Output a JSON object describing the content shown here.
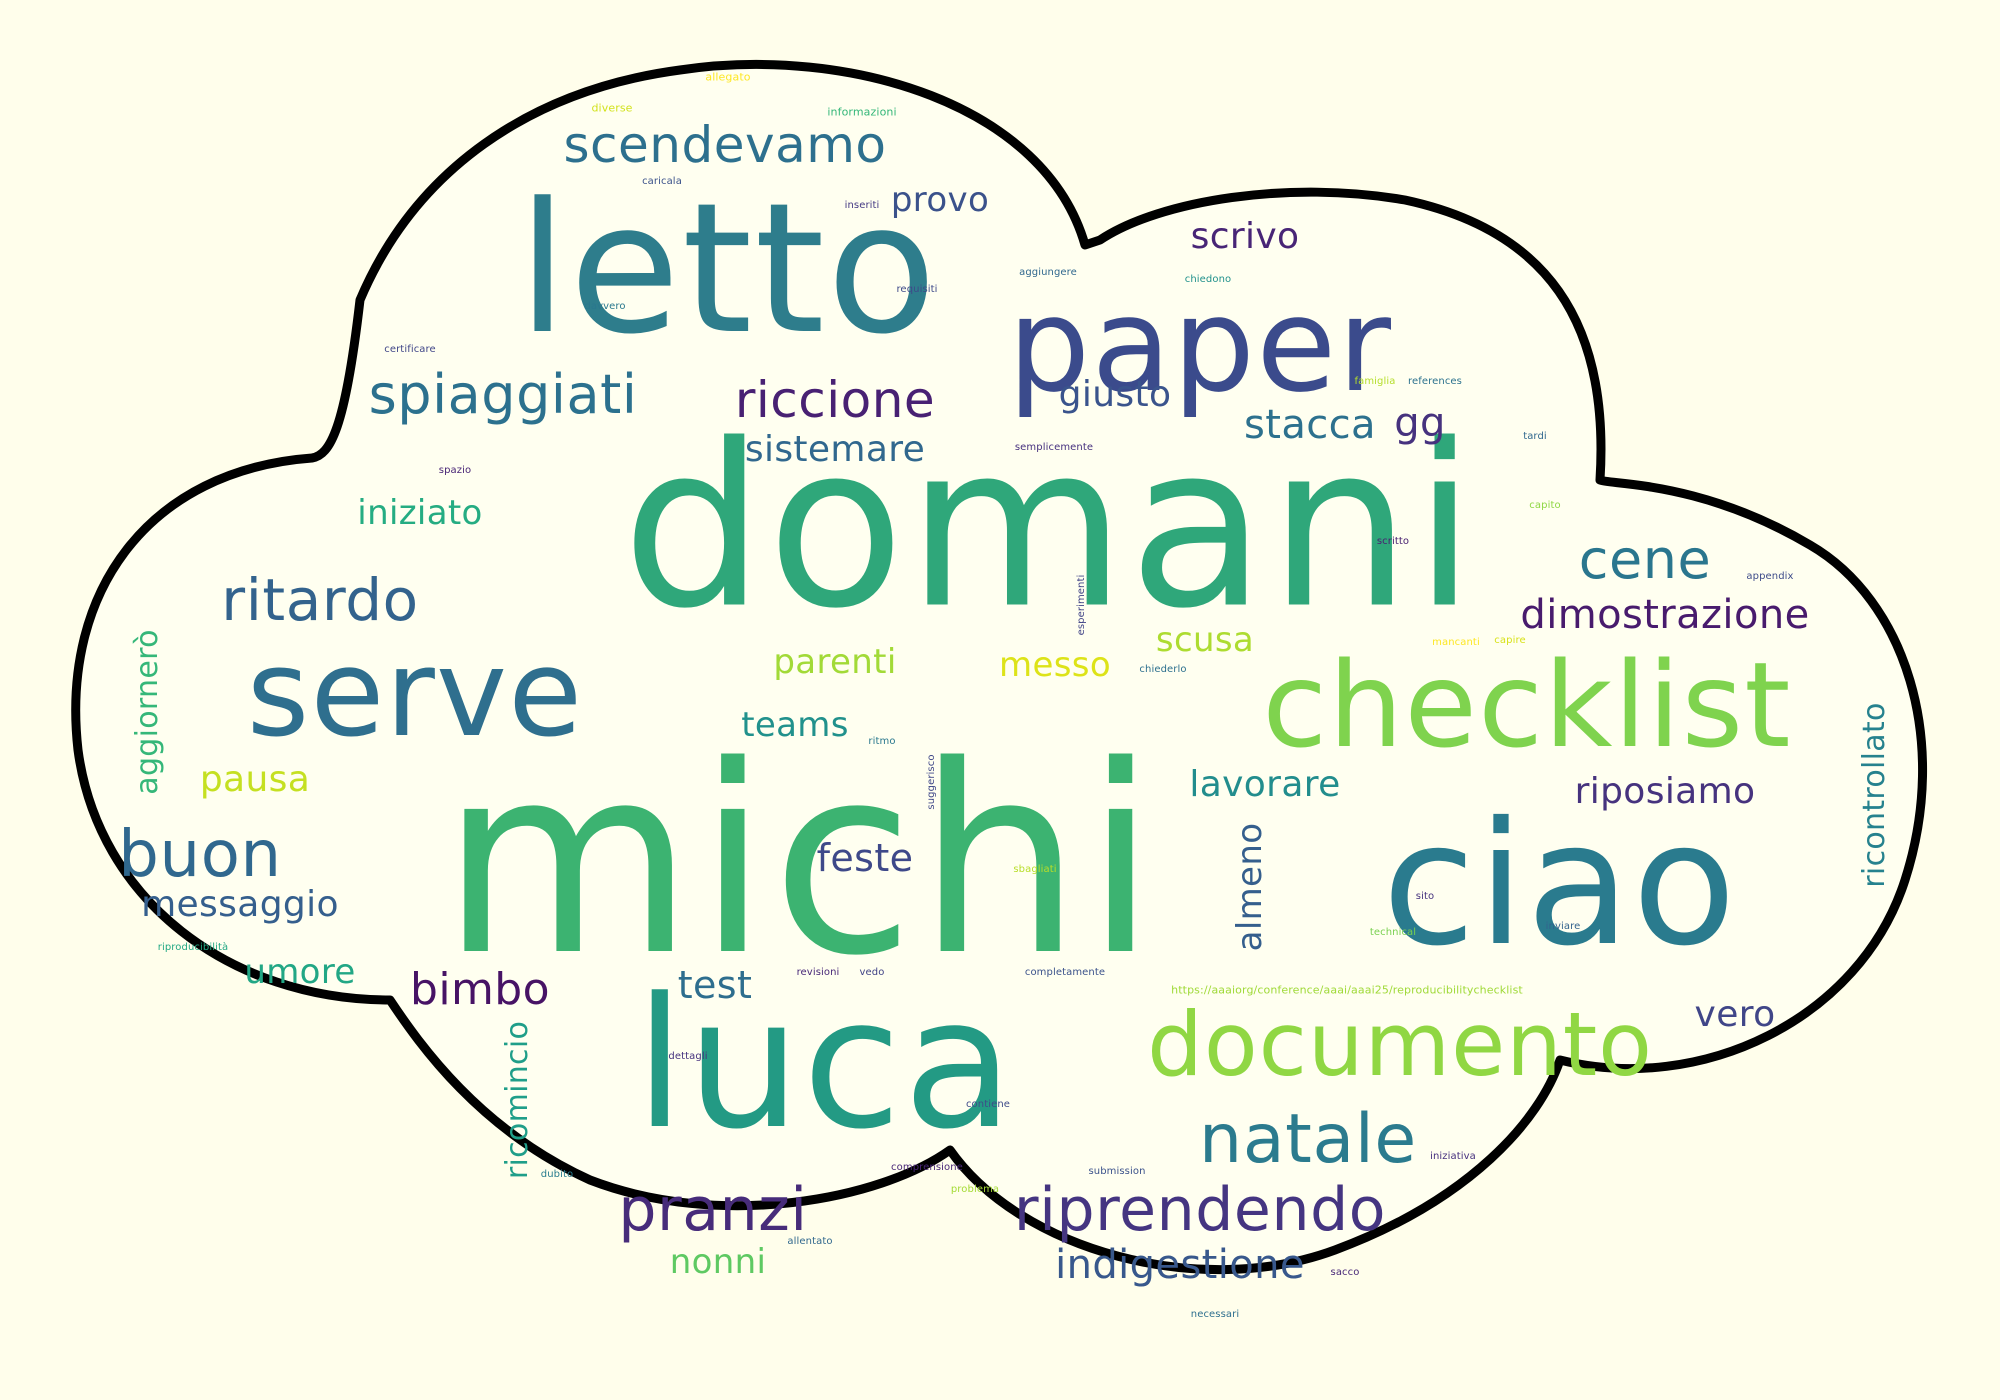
{
  "words": [
    {
      "text": "michi",
      "color": "#3cb371"
    },
    {
      "text": "domani",
      "color": "#2fa77a"
    },
    {
      "text": "letto",
      "color": "#2e7d8c"
    },
    {
      "text": "luca",
      "color": "#239a84"
    },
    {
      "text": "ciao",
      "color": "#2a7b8e"
    },
    {
      "text": "paper",
      "color": "#3b4b8c"
    },
    {
      "text": "checklist",
      "color": "#7fd34e"
    },
    {
      "text": "serve",
      "color": "#2f6f8e"
    },
    {
      "text": "documento",
      "color": "#90d743"
    },
    {
      "text": "natale",
      "color": "#2b7b8e"
    },
    {
      "text": "riprendendo",
      "color": "#453581"
    },
    {
      "text": "pranzi",
      "color": "#472c7a"
    },
    {
      "text": "ritardo",
      "color": "#33638d"
    },
    {
      "text": "buon",
      "color": "#30688e"
    },
    {
      "text": "scendevamo",
      "color": "#2d708e"
    },
    {
      "text": "spiaggiati",
      "color": "#2c718e"
    },
    {
      "text": "riccione",
      "color": "#482173"
    },
    {
      "text": "cene",
      "color": "#2a768e"
    },
    {
      "text": "dimostrazione",
      "color": "#481b6d"
    },
    {
      "text": "bimbo",
      "color": "#471365"
    },
    {
      "text": "indigestione",
      "color": "#38588c"
    },
    {
      "text": "sistemare",
      "color": "#31688e"
    },
    {
      "text": "giusto",
      "color": "#3a548c"
    },
    {
      "text": "stacca",
      "color": "#2d718e"
    },
    {
      "text": "gg",
      "color": "#46327e"
    },
    {
      "text": "provo",
      "color": "#3b528b"
    },
    {
      "text": "scrivo",
      "color": "#482576"
    },
    {
      "text": "iniziato",
      "color": "#25ac82"
    },
    {
      "text": "messaggio",
      "color": "#355f8d"
    },
    {
      "text": "umore",
      "color": "#22a785"
    },
    {
      "text": "test",
      "color": "#2e6e8e"
    },
    {
      "text": "feste",
      "color": "#3e4989"
    },
    {
      "text": "teams",
      "color": "#21918c"
    },
    {
      "text": "parenti",
      "color": "#a2da37"
    },
    {
      "text": "messo",
      "color": "#dde318"
    },
    {
      "text": "scusa",
      "color": "#addc30"
    },
    {
      "text": "pausa",
      "color": "#c5e021"
    },
    {
      "text": "lavorare",
      "color": "#228d8d"
    },
    {
      "text": "riposiamo",
      "color": "#46337e"
    },
    {
      "text": "vero",
      "color": "#404688"
    },
    {
      "text": "nonni",
      "color": "#5ec962"
    },
    {
      "text": "almeno",
      "color": "#355f8d"
    },
    {
      "text": "ricontrollato",
      "color": "#26828e"
    },
    {
      "text": "aggiornerò",
      "color": "#35b779"
    },
    {
      "text": "ricomincio",
      "color": "#1f9e89"
    },
    {
      "text": "allegato",
      "color": "#fde725"
    },
    {
      "text": "diverse",
      "color": "#d2e21b"
    },
    {
      "text": "informazioni",
      "color": "#35b779"
    },
    {
      "text": "caricala",
      "color": "#3b528b"
    },
    {
      "text": "inseriti",
      "color": "#443983"
    },
    {
      "text": "aggiungere",
      "color": "#31688e"
    },
    {
      "text": "chiedono",
      "color": "#21918c"
    },
    {
      "text": "requisiti",
      "color": "#3e4a89"
    },
    {
      "text": "davvero",
      "color": "#2a788e"
    },
    {
      "text": "certificare",
      "color": "#404688"
    },
    {
      "text": "famiglia",
      "color": "#b5de2b"
    },
    {
      "text": "references",
      "color": "#2c728e"
    },
    {
      "text": "semplicemente",
      "color": "#46307e"
    },
    {
      "text": "tardi",
      "color": "#31688e"
    },
    {
      "text": "spazio",
      "color": "#482475"
    },
    {
      "text": "capito",
      "color": "#8fd744"
    },
    {
      "text": "scritto",
      "color": "#482071"
    },
    {
      "text": "appendix",
      "color": "#3e4c8a"
    },
    {
      "text": "esperimenti",
      "color": "#414487"
    },
    {
      "text": "mancanti",
      "color": "#fde725"
    },
    {
      "text": "capire",
      "color": "#d8e219"
    },
    {
      "text": "chiederlo",
      "color": "#2d708e"
    },
    {
      "text": "ritmo",
      "color": "#2a788e"
    },
    {
      "text": "suggerisco",
      "color": "#3f4788"
    },
    {
      "text": "sbagliati",
      "color": "#b8de29"
    },
    {
      "text": "sito",
      "color": "#46337e"
    },
    {
      "text": "technical",
      "color": "#7ad151"
    },
    {
      "text": "inviare",
      "color": "#33638d"
    },
    {
      "text": "riproducibilità",
      "color": "#22a884"
    },
    {
      "text": "revisioni",
      "color": "#482878"
    },
    {
      "text": "vedo",
      "color": "#414487"
    },
    {
      "text": "completamente",
      "color": "#3b528b"
    },
    {
      "text": "https://aaaiorg/conference/aaai/aaai25/reproducibilitychecklist",
      "color": "#a0da39"
    },
    {
      "text": "dettagli",
      "color": "#46327e"
    },
    {
      "text": "contiene",
      "color": "#3e4a89"
    },
    {
      "text": "comprensione",
      "color": "#482677"
    },
    {
      "text": "submission",
      "color": "#3b528b"
    },
    {
      "text": "iniziativa",
      "color": "#46307e"
    },
    {
      "text": "dubito",
      "color": "#287c8e"
    },
    {
      "text": "problema",
      "color": "#a5db36"
    },
    {
      "text": "allentato",
      "color": "#31688e"
    },
    {
      "text": "sacco",
      "color": "#482878"
    },
    {
      "text": "necessari",
      "color": "#2e6f8e"
    }
  ],
  "colors": {
    "background": "#fffeeb",
    "cloud_fill": "#fffff0",
    "cloud_outline": "#000000"
  }
}
